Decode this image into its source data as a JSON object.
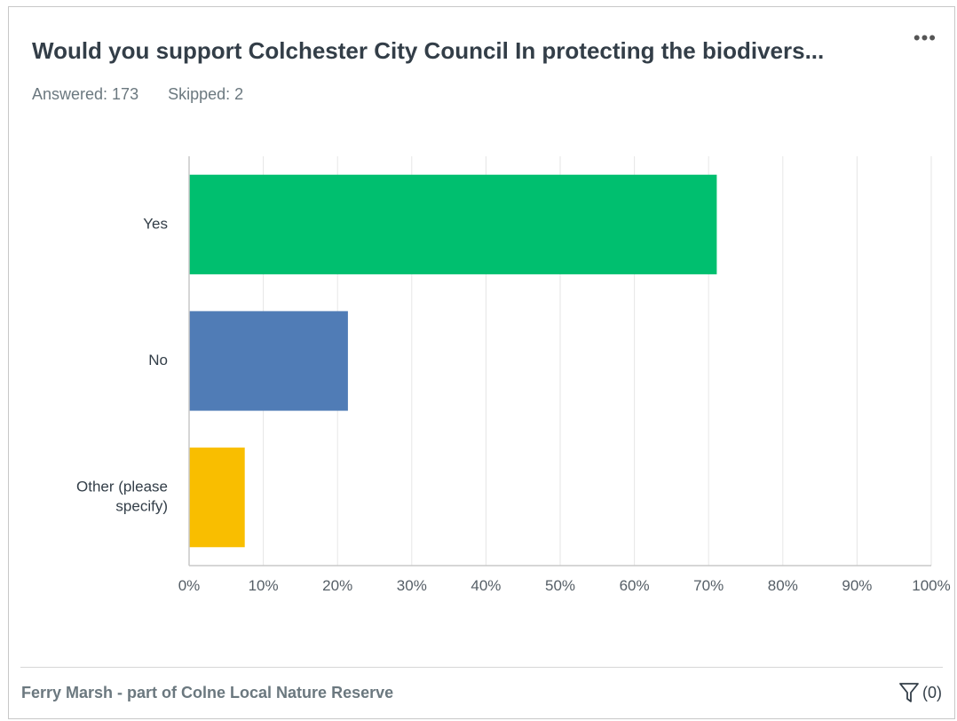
{
  "header": {
    "title": "Would you support Colchester City Council In protecting the biodivers...",
    "menu_label": "•••",
    "answered": "Answered: 173",
    "skipped": "Skipped: 2"
  },
  "footer": {
    "text": "Ferry Marsh - part of Colne Local Nature Reserve",
    "filter_count": "(0)"
  },
  "icons": {
    "menu": "more-horizontal-icon",
    "filter": "filter-funnel-icon"
  },
  "chart_data": {
    "type": "bar",
    "orientation": "horizontal",
    "title": "",
    "xlabel": "",
    "ylabel": "",
    "categories": [
      [
        "Yes"
      ],
      [
        "No"
      ],
      [
        "Other (please",
        "specify)"
      ]
    ],
    "values": [
      71.1,
      21.4,
      7.5
    ],
    "colors": [
      "#00bf6f",
      "#507cb6",
      "#f9be00"
    ],
    "xlim": [
      0,
      100
    ],
    "ticks": [
      0,
      10,
      20,
      30,
      40,
      50,
      60,
      70,
      80,
      90,
      100
    ],
    "tick_labels": [
      "0%",
      "10%",
      "20%",
      "30%",
      "40%",
      "50%",
      "60%",
      "70%",
      "80%",
      "90%",
      "100%"
    ],
    "grid": true,
    "legend": "none"
  }
}
